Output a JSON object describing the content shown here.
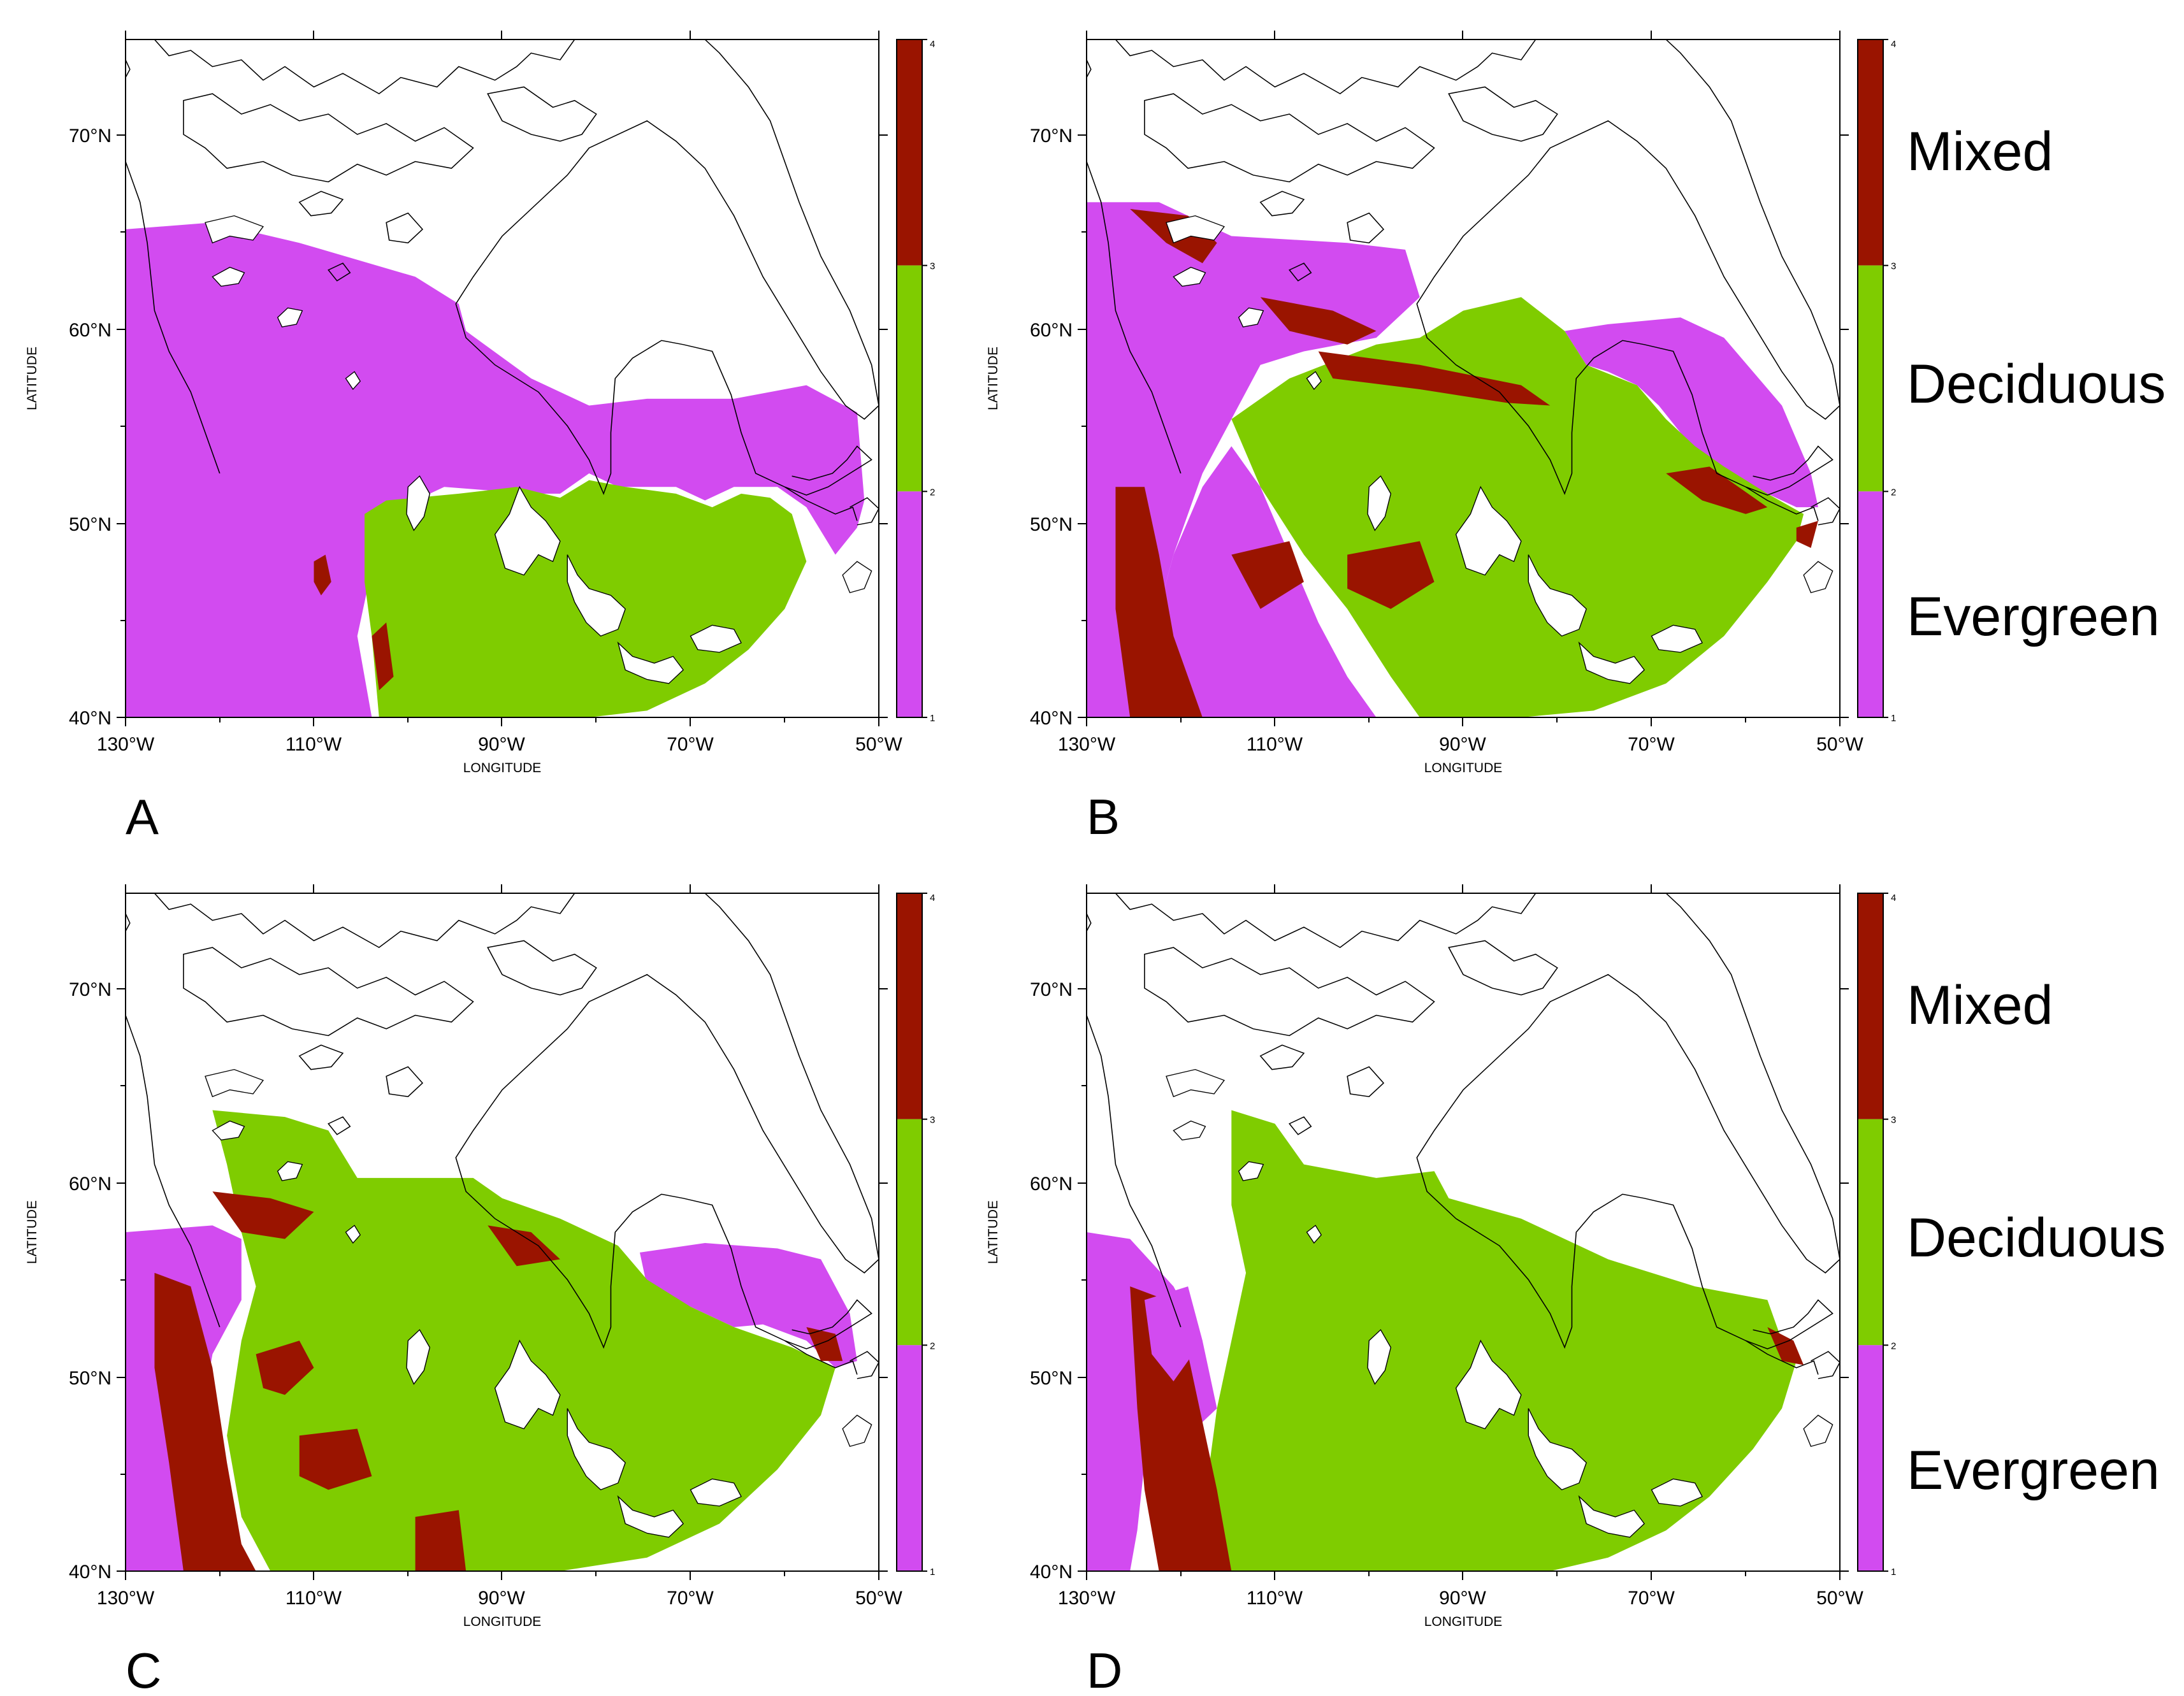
{
  "figure": {
    "longitude_ticks": [
      "130°W",
      "110°W",
      "90°W",
      "70°W",
      "50°W"
    ],
    "latitude_ticks": [
      "40°N",
      "50°N",
      "60°N",
      "70°N"
    ],
    "xlabel": "LONGITUDE",
    "ylabel": "LATITUDE",
    "colorbar_ticks": [
      "1",
      "2",
      "3",
      "4"
    ],
    "legend_labels": [
      "Mixed",
      "Deciduous",
      "Evergreen"
    ],
    "colors": {
      "evergreen": "#D24BF0",
      "deciduous": "#7FCC00",
      "mixed": "#9A1400",
      "coast": "#000000",
      "frame": "#000000"
    },
    "extent": {
      "lon": [
        -130,
        -50
      ],
      "lat": [
        40,
        75
      ]
    }
  },
  "panels": [
    {
      "id": "A",
      "letter": "A",
      "legend_labels_shown": false
    },
    {
      "id": "B",
      "letter": "B",
      "legend_labels_shown": true
    },
    {
      "id": "C",
      "letter": "C",
      "legend_labels_shown": false
    },
    {
      "id": "D",
      "letter": "D",
      "legend_labels_shown": true
    }
  ]
}
